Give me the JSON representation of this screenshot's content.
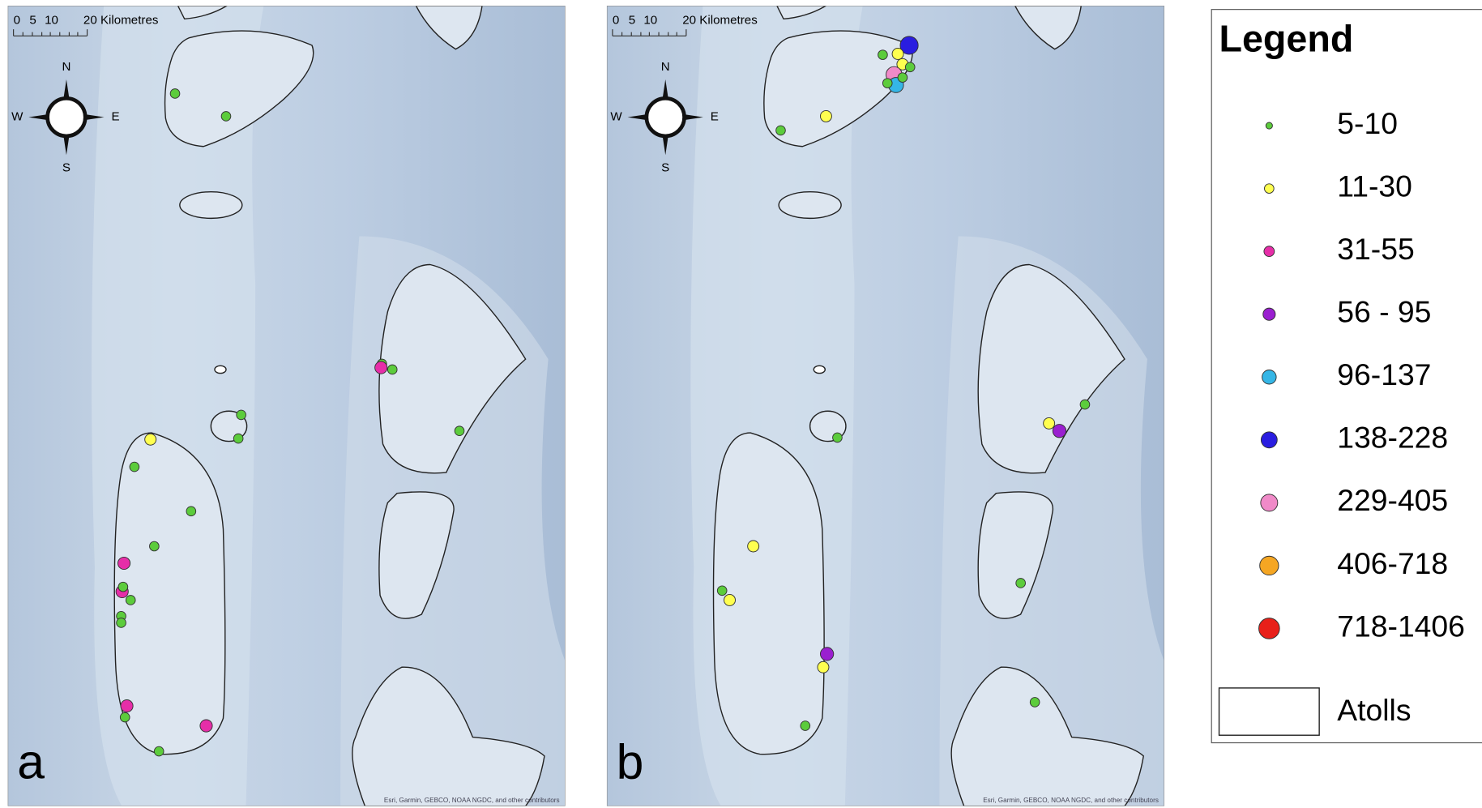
{
  "panels": [
    {
      "label": "a",
      "scale_labels": [
        "0",
        "5",
        "10",
        "20 Kilometres"
      ],
      "compass": {
        "n": "N",
        "e": "E",
        "s": "S",
        "w": "W"
      },
      "attribution": "Esri, Garmin, GEBCO, NOAA NGDC, and other contributors"
    },
    {
      "label": "b",
      "scale_labels": [
        "0",
        "5",
        "10",
        "20 Kilometres"
      ],
      "compass": {
        "n": "N",
        "e": "E",
        "s": "S",
        "w": "W"
      },
      "attribution": "Esri, Garmin, GEBCO, NOAA NGDC, and other contributors"
    }
  ],
  "legend": {
    "title": "Legend",
    "items": [
      {
        "label": "5-10",
        "color": "#5ccc3c"
      },
      {
        "label": "11-30",
        "color": "#ffff50"
      },
      {
        "label": "31-55",
        "color": "#e62ea8"
      },
      {
        "label": "56 - 95",
        "color": "#9a1fd0"
      },
      {
        "label": "96-137",
        "color": "#35b6e6"
      },
      {
        "label": "138-228",
        "color": "#2a1de0"
      },
      {
        "label": "229-405",
        "color": "#f08ac8"
      },
      {
        "label": "406-718",
        "color": "#f5a623"
      },
      {
        "label": "718-1406",
        "color": "#e8201a"
      }
    ],
    "atolls": "Atolls"
  }
}
